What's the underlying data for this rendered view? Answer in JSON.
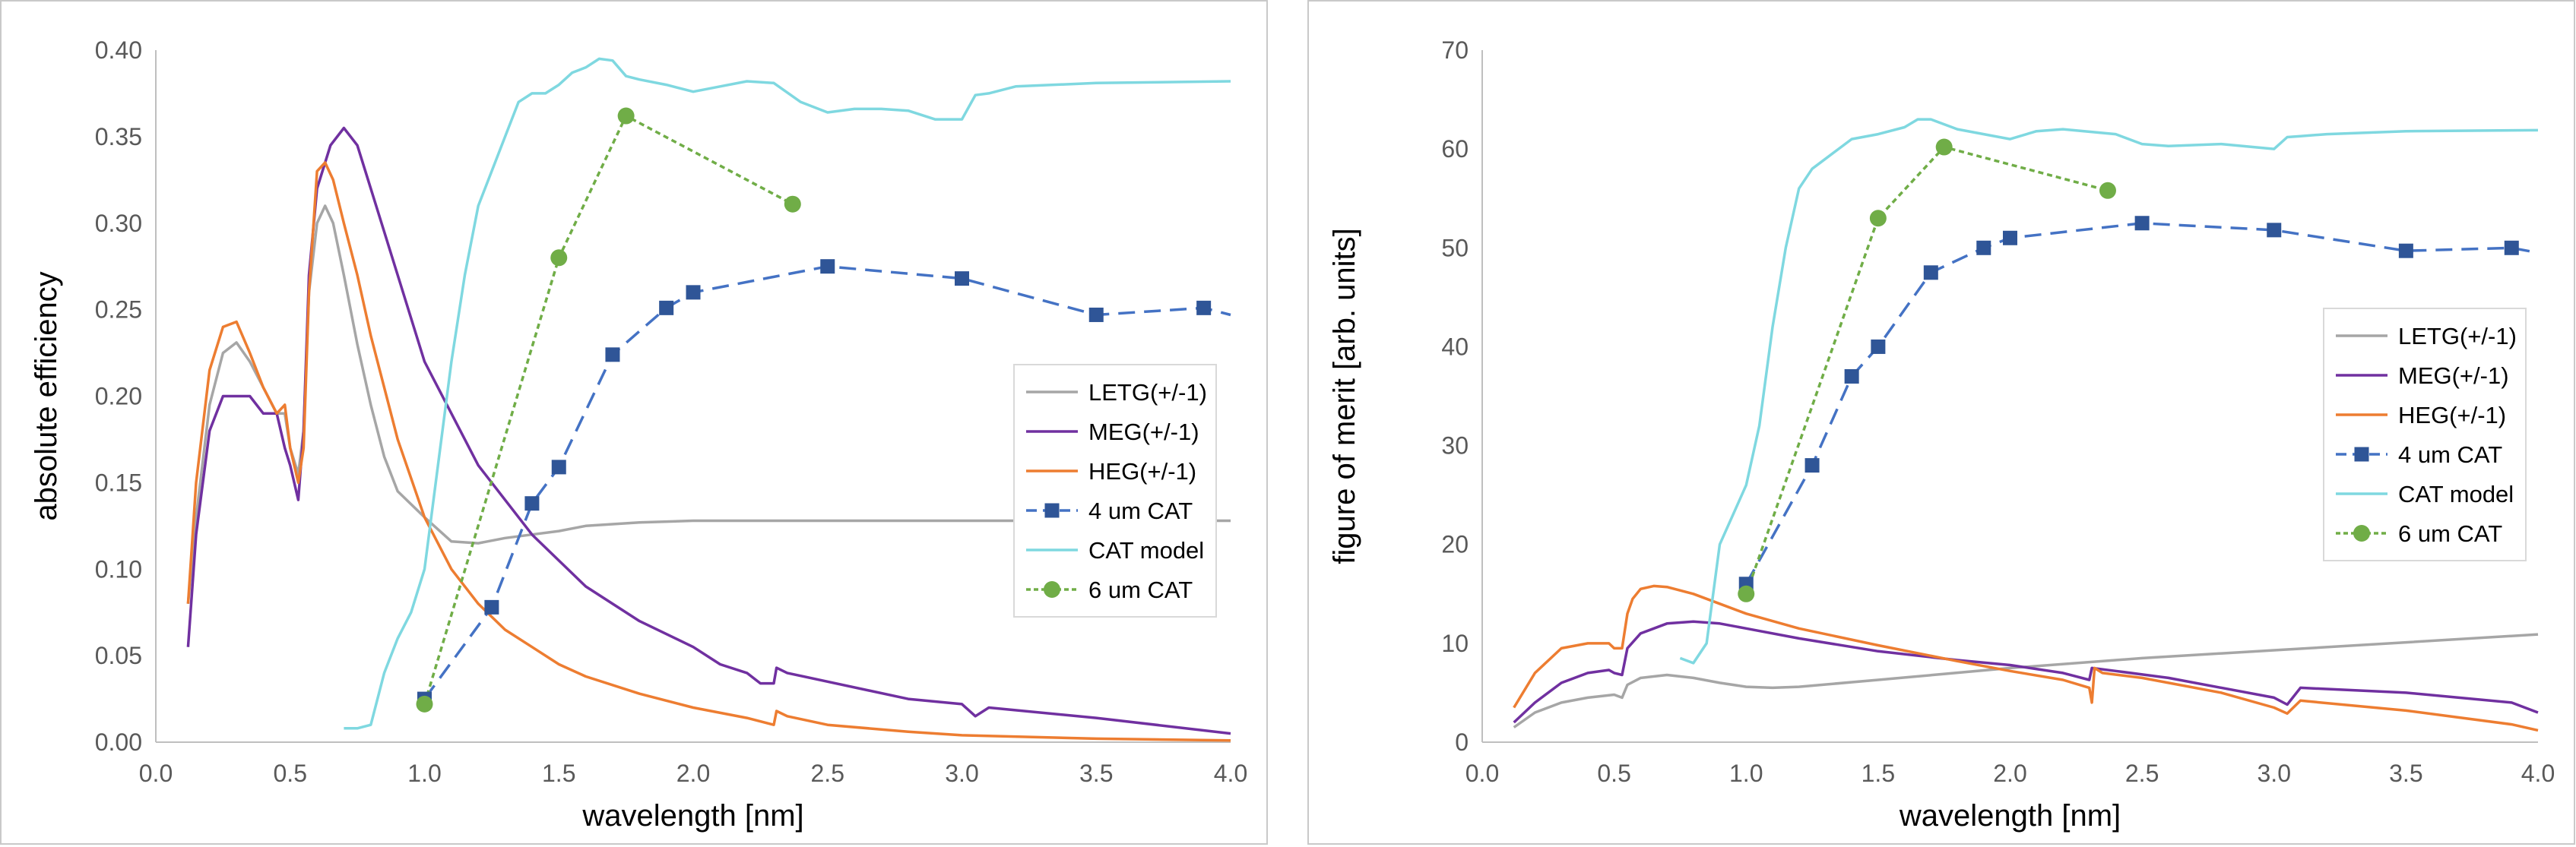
{
  "chart_data": [
    {
      "type": "line",
      "title": "",
      "xlabel": "wavelength [nm]",
      "ylabel": "absolute efficiency",
      "xlim": [
        0.0,
        4.0
      ],
      "ylim": [
        0.0,
        0.4
      ],
      "xticks": [
        "0.0",
        "0.5",
        "1.0",
        "1.5",
        "2.0",
        "2.5",
        "3.0",
        "3.5",
        "4.0"
      ],
      "yticks": [
        "0.00",
        "0.05",
        "0.10",
        "0.15",
        "0.20",
        "0.25",
        "0.30",
        "0.35",
        "0.40"
      ],
      "grid": false,
      "legend_position": "center-right",
      "series": [
        {
          "name": "LETG(+/-1)",
          "color": "#a6a6a6",
          "style": "solid",
          "marker": "none",
          "x": [
            0.12,
            0.15,
            0.2,
            0.25,
            0.3,
            0.35,
            0.4,
            0.45,
            0.48,
            0.5,
            0.53,
            0.55,
            0.57,
            0.6,
            0.63,
            0.66,
            0.7,
            0.75,
            0.8,
            0.85,
            0.9,
            1.0,
            1.1,
            1.2,
            1.3,
            1.4,
            1.5,
            1.6,
            1.8,
            2.0,
            2.5,
            3.0,
            3.5,
            4.0
          ],
          "y": [
            0.08,
            0.13,
            0.195,
            0.225,
            0.231,
            0.22,
            0.205,
            0.19,
            0.19,
            0.17,
            0.155,
            0.18,
            0.26,
            0.3,
            0.31,
            0.3,
            0.27,
            0.23,
            0.195,
            0.165,
            0.145,
            0.13,
            0.116,
            0.115,
            0.118,
            0.12,
            0.122,
            0.125,
            0.127,
            0.128,
            0.128,
            0.128,
            0.128,
            0.128
          ]
        },
        {
          "name": "MEG(+/-1)",
          "color": "#7030a0",
          "style": "solid",
          "marker": "none",
          "x": [
            0.12,
            0.15,
            0.2,
            0.25,
            0.3,
            0.35,
            0.4,
            0.45,
            0.48,
            0.5,
            0.53,
            0.55,
            0.57,
            0.6,
            0.65,
            0.7,
            0.75,
            0.8,
            0.9,
            1.0,
            1.2,
            1.4,
            1.6,
            1.8,
            2.0,
            2.1,
            2.2,
            2.25,
            2.3,
            2.31,
            2.35,
            2.5,
            2.8,
            3.0,
            3.05,
            3.1,
            3.5,
            4.0
          ],
          "y": [
            0.055,
            0.12,
            0.18,
            0.2,
            0.2,
            0.2,
            0.19,
            0.19,
            0.17,
            0.16,
            0.14,
            0.18,
            0.27,
            0.32,
            0.345,
            0.355,
            0.345,
            0.32,
            0.27,
            0.22,
            0.16,
            0.12,
            0.09,
            0.07,
            0.055,
            0.045,
            0.04,
            0.034,
            0.034,
            0.043,
            0.04,
            0.035,
            0.025,
            0.022,
            0.015,
            0.02,
            0.014,
            0.005
          ]
        },
        {
          "name": "HEG(+/-1)",
          "color": "#ed7d31",
          "style": "solid",
          "marker": "none",
          "x": [
            0.12,
            0.15,
            0.2,
            0.25,
            0.3,
            0.35,
            0.4,
            0.45,
            0.48,
            0.5,
            0.53,
            0.55,
            0.57,
            0.6,
            0.63,
            0.66,
            0.7,
            0.75,
            0.8,
            0.9,
            1.0,
            1.1,
            1.2,
            1.3,
            1.4,
            1.5,
            1.6,
            1.8,
            2.0,
            2.2,
            2.3,
            2.31,
            2.35,
            2.5,
            2.8,
            3.0,
            3.5,
            4.0
          ],
          "y": [
            0.08,
            0.15,
            0.215,
            0.24,
            0.243,
            0.225,
            0.205,
            0.19,
            0.195,
            0.17,
            0.15,
            0.17,
            0.26,
            0.33,
            0.335,
            0.325,
            0.3,
            0.27,
            0.235,
            0.175,
            0.13,
            0.1,
            0.08,
            0.065,
            0.055,
            0.045,
            0.038,
            0.028,
            0.02,
            0.014,
            0.01,
            0.018,
            0.015,
            0.01,
            0.006,
            0.004,
            0.002,
            0.001
          ]
        },
        {
          "name": "4 um CAT",
          "color": "#4472c4",
          "marker_color": "#2f5597",
          "style": "dashed",
          "marker": "square",
          "x": [
            1.0,
            1.25,
            1.4,
            1.5,
            1.7,
            1.9,
            2.0,
            2.5,
            3.0,
            3.5,
            3.9,
            4.0
          ],
          "y": [
            0.025,
            0.078,
            0.138,
            0.159,
            0.224,
            0.251,
            0.26,
            0.275,
            0.268,
            0.247,
            0.251,
            0.247
          ],
          "markers_x": [
            1.0,
            1.25,
            1.4,
            1.5,
            1.7,
            1.9,
            2.0,
            2.5,
            3.0,
            3.5,
            3.9
          ]
        },
        {
          "name": "CAT model",
          "color": "#7fd8e0",
          "style": "solid",
          "marker": "none",
          "x": [
            0.7,
            0.75,
            0.8,
            0.85,
            0.9,
            0.95,
            1.0,
            1.05,
            1.1,
            1.15,
            1.2,
            1.25,
            1.3,
            1.35,
            1.4,
            1.45,
            1.5,
            1.55,
            1.6,
            1.65,
            1.7,
            1.75,
            1.8,
            1.9,
            2.0,
            2.1,
            2.2,
            2.3,
            2.4,
            2.5,
            2.6,
            2.7,
            2.8,
            2.9,
            3.0,
            3.05,
            3.1,
            3.2,
            3.5,
            4.0
          ],
          "y": [
            0.008,
            0.008,
            0.01,
            0.04,
            0.06,
            0.075,
            0.1,
            0.16,
            0.22,
            0.27,
            0.31,
            0.33,
            0.35,
            0.37,
            0.375,
            0.375,
            0.38,
            0.387,
            0.39,
            0.395,
            0.394,
            0.385,
            0.383,
            0.38,
            0.376,
            0.379,
            0.382,
            0.381,
            0.37,
            0.364,
            0.366,
            0.366,
            0.365,
            0.36,
            0.36,
            0.374,
            0.375,
            0.379,
            0.381,
            0.382
          ]
        },
        {
          "name": "6 um CAT",
          "color": "#70ad47",
          "style": "dotted",
          "marker": "circle",
          "x": [
            1.0,
            1.5,
            1.75,
            2.37
          ],
          "y": [
            0.022,
            0.28,
            0.362,
            0.311
          ]
        }
      ]
    },
    {
      "type": "line",
      "title": "",
      "xlabel": "wavelength [nm]",
      "ylabel": "figure of merit [arb. units]",
      "xlim": [
        0.0,
        4.0
      ],
      "ylim": [
        0,
        70
      ],
      "xticks": [
        "0.0",
        "0.5",
        "1.0",
        "1.5",
        "2.0",
        "2.5",
        "3.0",
        "3.5",
        "4.0"
      ],
      "yticks": [
        "0",
        "10",
        "20",
        "30",
        "40",
        "50",
        "60",
        "70"
      ],
      "grid": false,
      "legend_position": "center-right",
      "series": [
        {
          "name": "LETG(+/-1)",
          "color": "#a6a6a6",
          "style": "solid",
          "marker": "none",
          "x": [
            0.12,
            0.2,
            0.3,
            0.4,
            0.5,
            0.53,
            0.55,
            0.6,
            0.7,
            0.8,
            0.9,
            1.0,
            1.1,
            1.2,
            1.5,
            2.0,
            2.5,
            3.0,
            3.5,
            4.0
          ],
          "y": [
            1.5,
            3,
            4,
            4.5,
            4.8,
            4.5,
            5.8,
            6.5,
            6.8,
            6.5,
            6,
            5.6,
            5.5,
            5.6,
            6.3,
            7.5,
            8.5,
            9.3,
            10.1,
            10.9
          ]
        },
        {
          "name": "MEG(+/-1)",
          "color": "#7030a0",
          "style": "solid",
          "marker": "none",
          "x": [
            0.12,
            0.2,
            0.3,
            0.4,
            0.48,
            0.5,
            0.53,
            0.55,
            0.6,
            0.7,
            0.8,
            0.9,
            1.0,
            1.2,
            1.5,
            1.8,
            2.0,
            2.2,
            2.3,
            2.31,
            2.4,
            2.6,
            3.0,
            3.05,
            3.1,
            3.5,
            3.9,
            4.0
          ],
          "y": [
            2,
            4,
            6,
            7,
            7.3,
            7,
            6.8,
            9.5,
            11,
            12,
            12.2,
            12,
            11.5,
            10.5,
            9.2,
            8.3,
            7.8,
            7,
            6.3,
            7.5,
            7.2,
            6.5,
            4.5,
            3.8,
            5.5,
            5,
            4,
            3
          ]
        },
        {
          "name": "HEG(+/-1)",
          "color": "#ed7d31",
          "style": "solid",
          "marker": "none",
          "x": [
            0.12,
            0.2,
            0.3,
            0.4,
            0.48,
            0.5,
            0.53,
            0.55,
            0.57,
            0.6,
            0.65,
            0.7,
            0.8,
            0.9,
            1.0,
            1.2,
            1.5,
            1.8,
            2.0,
            2.2,
            2.3,
            2.31,
            2.32,
            2.35,
            2.5,
            2.8,
            3.0,
            3.05,
            3.1,
            3.5,
            3.9,
            4.0
          ],
          "y": [
            3.5,
            7,
            9.5,
            10,
            10,
            9.5,
            9.5,
            13,
            14.5,
            15.5,
            15.8,
            15.7,
            15,
            14,
            13,
            11.5,
            9.8,
            8.2,
            7.2,
            6.3,
            5.5,
            4,
            7.5,
            7,
            6.5,
            5,
            3.5,
            2.9,
            4.2,
            3.2,
            1.8,
            1.2
          ]
        },
        {
          "name": "4 um CAT",
          "color": "#4472c4",
          "marker_color": "#2f5597",
          "style": "dashed",
          "marker": "square",
          "x": [
            1.0,
            1.25,
            1.4,
            1.5,
            1.7,
            1.9,
            2.0,
            2.5,
            3.0,
            3.5,
            3.9,
            4.0
          ],
          "y": [
            16,
            28,
            37,
            40,
            47.5,
            50,
            51,
            52.5,
            51.8,
            49.7,
            50,
            49.5
          ],
          "markers_x": [
            1.0,
            1.25,
            1.4,
            1.5,
            1.7,
            1.9,
            2.0,
            2.5,
            3.0,
            3.5,
            3.9
          ]
        },
        {
          "name": "CAT model",
          "color": "#7fd8e0",
          "style": "solid",
          "marker": "none",
          "x": [
            0.75,
            0.8,
            0.85,
            0.9,
            0.95,
            1.0,
            1.05,
            1.1,
            1.15,
            1.2,
            1.25,
            1.3,
            1.35,
            1.4,
            1.5,
            1.6,
            1.65,
            1.7,
            1.8,
            1.9,
            2.0,
            2.1,
            2.2,
            2.4,
            2.5,
            2.6,
            2.8,
            3.0,
            3.05,
            3.1,
            3.2,
            3.5,
            4.0
          ],
          "y": [
            8.5,
            8,
            10,
            20,
            23,
            26,
            32,
            42,
            50,
            56,
            58,
            59,
            60,
            61,
            61.5,
            62.2,
            63,
            63,
            62,
            61.5,
            61,
            61.8,
            62,
            61.5,
            60.5,
            60.3,
            60.5,
            60,
            61.2,
            61.3,
            61.5,
            61.8,
            61.9
          ]
        },
        {
          "name": "6 um CAT",
          "color": "#70ad47",
          "style": "dotted",
          "marker": "circle",
          "x": [
            1.0,
            1.5,
            1.75,
            2.37
          ],
          "y": [
            15,
            53,
            60.2,
            55.8
          ]
        }
      ]
    }
  ]
}
